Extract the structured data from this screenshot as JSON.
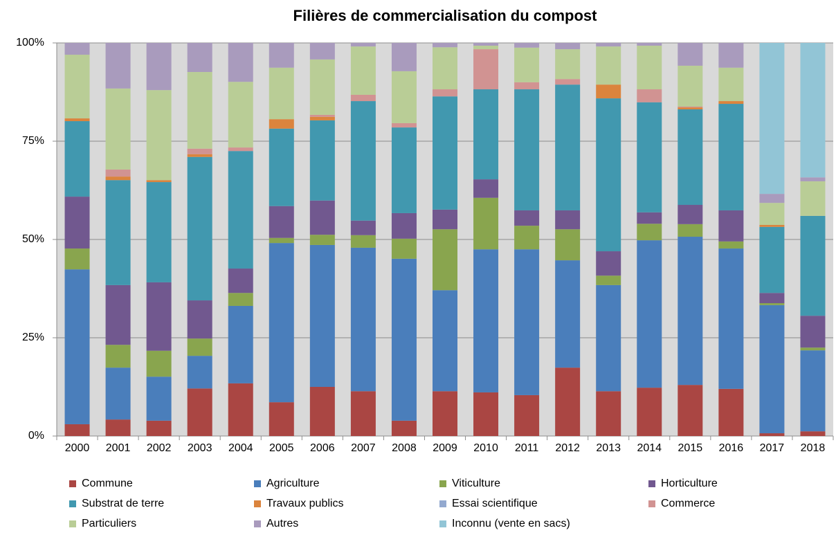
{
  "chart_data": {
    "type": "stacked_bar",
    "title": "Filières de commercialisation du compost",
    "categories": [
      "2000",
      "2001",
      "2002",
      "2003",
      "2004",
      "2005",
      "2006",
      "2007",
      "2008",
      "2009",
      "2010",
      "2011",
      "2012",
      "2013",
      "2014",
      "2015",
      "2016",
      "2017",
      "2018"
    ],
    "ylim": [
      0,
      100
    ],
    "yticks": [
      {
        "value": 0,
        "label": "0%"
      },
      {
        "value": 25,
        "label": "25%"
      },
      {
        "value": 50,
        "label": "50%"
      },
      {
        "value": 75,
        "label": "75%"
      },
      {
        "value": 100,
        "label": "100%"
      }
    ],
    "grid": true,
    "legend": "bottom",
    "series": [
      {
        "name": "Commune",
        "color": "#aa4643",
        "values": [
          3.0,
          4.2,
          3.9,
          12.1,
          13.4,
          8.6,
          12.5,
          11.4,
          3.9,
          11.4,
          11.1,
          10.4,
          17.4,
          11.4,
          12.3,
          13.0,
          12.0,
          0.7,
          1.2
        ]
      },
      {
        "name": "Agriculture",
        "color": "#4a7ebb",
        "values": [
          39.4,
          13.2,
          11.2,
          8.3,
          19.7,
          40.5,
          36.1,
          36.5,
          41.2,
          25.7,
          36.4,
          37.1,
          27.3,
          27.0,
          37.5,
          37.7,
          35.7,
          32.6,
          20.6
        ]
      },
      {
        "name": "Viticulture",
        "color": "#89a54e",
        "values": [
          5.3,
          5.8,
          6.6,
          4.4,
          3.3,
          1.3,
          2.6,
          3.2,
          5.1,
          15.5,
          13.1,
          6.0,
          7.9,
          2.4,
          4.2,
          3.2,
          1.8,
          0.5,
          0.7
        ]
      },
      {
        "name": "Horticulture",
        "color": "#71588f",
        "values": [
          13.2,
          15.2,
          17.4,
          9.7,
          6.2,
          8.1,
          8.7,
          3.7,
          6.5,
          5.0,
          4.7,
          3.9,
          4.8,
          6.2,
          2.9,
          4.9,
          7.9,
          2.6,
          8.1
        ]
      },
      {
        "name": "Substrat de terre",
        "color": "#4198af",
        "values": [
          19.2,
          26.7,
          25.5,
          36.5,
          29.9,
          19.7,
          20.4,
          30.4,
          21.8,
          28.8,
          22.9,
          30.8,
          32.0,
          38.9,
          28.0,
          24.3,
          27.1,
          16.8,
          25.4
        ]
      },
      {
        "name": "Travaux publics",
        "color": "#db843d",
        "values": [
          0.7,
          0.9,
          0.5,
          0.7,
          0,
          2.4,
          0.9,
          0,
          0,
          0,
          0,
          0,
          0,
          3.5,
          0,
          0.5,
          0.7,
          0.5,
          0
        ]
      },
      {
        "name": "Essai scientifique",
        "color": "#93a9cf",
        "values": [
          0,
          0,
          0,
          0,
          0,
          0,
          0,
          0,
          0,
          0,
          0,
          0,
          0,
          0,
          0,
          0,
          0,
          0,
          0
        ]
      },
      {
        "name": "Commerce",
        "color": "#d19392",
        "values": [
          0,
          1.8,
          0,
          1.4,
          0.9,
          0,
          0.5,
          1.6,
          1.1,
          1.8,
          10.2,
          1.8,
          1.4,
          0,
          3.3,
          0.2,
          0,
          0,
          0
        ]
      },
      {
        "name": "Particuliers",
        "color": "#b9cd96",
        "values": [
          16.2,
          20.6,
          22.9,
          19.5,
          16.7,
          13.1,
          14.1,
          12.3,
          13.2,
          10.7,
          0.9,
          8.8,
          7.6,
          9.7,
          11.1,
          10.4,
          8.5,
          5.6,
          8.8
        ]
      },
      {
        "name": "Autres",
        "color": "#a99bbd",
        "values": [
          3.0,
          11.6,
          12.0,
          7.4,
          9.9,
          6.3,
          4.2,
          0.9,
          7.2,
          1.1,
          0.7,
          1.2,
          1.6,
          0.9,
          0.7,
          5.8,
          6.3,
          2.3,
          1.0
        ]
      },
      {
        "name": "Inconnu (vente en sacs)",
        "color": "#92c5d6",
        "values": [
          0,
          0,
          0,
          0,
          0,
          0,
          0,
          0,
          0,
          0,
          0,
          0,
          0,
          0,
          0,
          0,
          0,
          38.4,
          34.2
        ]
      }
    ]
  }
}
